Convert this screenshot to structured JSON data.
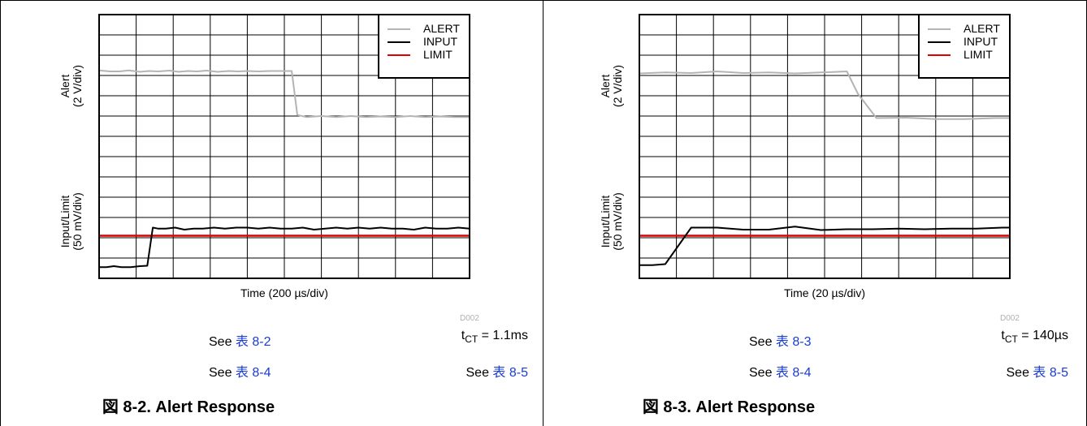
{
  "panels": [
    {
      "chart_data": {
        "type": "line",
        "xlabel": "Time (200 µs/div)",
        "ylabel_top": [
          "Alert",
          "(2 V/div)"
        ],
        "ylabel_bottom": [
          "Input/Limit",
          "(50 mV/div)"
        ],
        "x_divisions": 10,
        "y_divisions": 13,
        "grid": true,
        "legend_position": "top-right",
        "series": [
          {
            "name": "ALERT",
            "color": "#b4b4b4",
            "x": [
              0,
              0.3,
              0.55,
              0.8,
              1.1,
              1.35,
              1.6,
              1.9,
              2.15,
              2.4,
              2.65,
              2.9,
              3.2,
              3.5,
              3.75,
              4.0,
              4.3,
              4.6,
              4.9,
              5.2,
              5.35,
              5.6,
              6.0,
              6.4,
              6.8,
              7.2,
              7.6,
              8.0,
              8.4,
              8.8,
              9.2,
              9.6,
              10
            ],
            "y": [
              10.25,
              10.2,
              10.2,
              10.25,
              10.18,
              10.22,
              10.2,
              10.24,
              10.18,
              10.22,
              10.2,
              10.24,
              10.18,
              10.22,
              10.2,
              10.22,
              10.2,
              10.22,
              10.22,
              10.22,
              8.05,
              7.95,
              8.0,
              7.95,
              8.0,
              7.95,
              7.98,
              7.95,
              8.0,
              7.95,
              7.98,
              7.95,
              7.95
            ]
          },
          {
            "name": "INPUT",
            "color": "#000000",
            "x": [
              0,
              0.2,
              0.4,
              0.6,
              0.85,
              1.1,
              1.3,
              1.45,
              1.6,
              1.8,
              2.05,
              2.3,
              2.55,
              2.8,
              3.1,
              3.4,
              3.7,
              4.0,
              4.3,
              4.6,
              4.9,
              5.2,
              5.5,
              5.8,
              6.1,
              6.4,
              6.7,
              7.0,
              7.3,
              7.6,
              7.9,
              8.2,
              8.5,
              8.8,
              9.1,
              9.4,
              9.7,
              10
            ],
            "y": [
              0.55,
              0.55,
              0.6,
              0.55,
              0.55,
              0.6,
              0.62,
              2.5,
              2.45,
              2.45,
              2.5,
              2.4,
              2.45,
              2.45,
              2.5,
              2.45,
              2.5,
              2.5,
              2.45,
              2.5,
              2.45,
              2.45,
              2.5,
              2.4,
              2.45,
              2.5,
              2.45,
              2.5,
              2.45,
              2.5,
              2.45,
              2.45,
              2.4,
              2.5,
              2.45,
              2.45,
              2.5,
              2.45
            ]
          },
          {
            "name": "LIMIT",
            "color": "#e00000",
            "x": [
              0,
              10
            ],
            "y": [
              2.1,
              2.1
            ]
          }
        ]
      },
      "notes": {
        "left1": {
          "prefix": "See ",
          "ref": "表 8-2"
        },
        "right1": {
          "prefix": "t",
          "sub": "CT",
          "suffix": " = 1.1ms"
        },
        "left2": {
          "prefix": "See ",
          "ref": "表 8-4"
        },
        "right2": {
          "prefix": "See ",
          "ref": "表 8-5"
        }
      },
      "code": "D002",
      "caption": "図 8-2. Alert Response"
    },
    {
      "chart_data": {
        "type": "line",
        "xlabel": "Time (20 µs/div)",
        "ylabel_top": [
          "Alert",
          "(2 V/div)"
        ],
        "ylabel_bottom": [
          "Input/Limit",
          "(50 mV/div)"
        ],
        "x_divisions": 10,
        "y_divisions": 13,
        "grid": true,
        "legend_position": "top-right",
        "series": [
          {
            "name": "ALERT",
            "color": "#b4b4b4",
            "x": [
              0,
              0.7,
              1.4,
              2.1,
              2.8,
              3.5,
              4.2,
              4.9,
              5.6,
              5.9,
              6.4,
              7.2,
              8.0,
              8.8,
              9.6,
              10
            ],
            "y": [
              10.1,
              10.15,
              10.12,
              10.2,
              10.12,
              10.15,
              10.1,
              10.15,
              10.2,
              9.1,
              7.9,
              7.92,
              7.85,
              7.85,
              7.9,
              7.9
            ]
          },
          {
            "name": "INPUT",
            "color": "#000000",
            "x": [
              0,
              0.35,
              0.7,
              1.4,
              2.1,
              2.8,
              3.5,
              4.2,
              4.9,
              5.6,
              6.3,
              7.0,
              7.7,
              8.4,
              9.1,
              9.8,
              10
            ],
            "y": [
              0.65,
              0.65,
              0.7,
              2.5,
              2.5,
              2.4,
              2.4,
              2.55,
              2.38,
              2.42,
              2.42,
              2.45,
              2.42,
              2.45,
              2.45,
              2.5,
              2.5
            ]
          },
          {
            "name": "LIMIT",
            "color": "#e00000",
            "x": [
              0,
              10
            ],
            "y": [
              2.1,
              2.1
            ]
          }
        ]
      },
      "notes": {
        "left1": {
          "prefix": "See ",
          "ref": "表 8-3"
        },
        "right1": {
          "prefix": "t",
          "sub": "CT",
          "suffix": " = 140µs"
        },
        "left2": {
          "prefix": "See ",
          "ref": "表 8-4"
        },
        "right2": {
          "prefix": "See ",
          "ref": "表 8-5"
        }
      },
      "code": "D002",
      "caption": "図 8-3. Alert Response"
    }
  ]
}
